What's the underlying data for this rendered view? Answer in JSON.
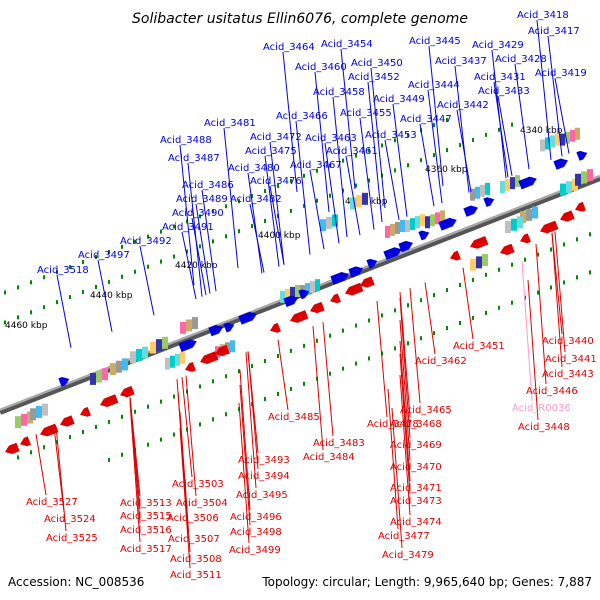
{
  "title": "Solibacter usitatus Ellin6076, complete genome",
  "accession": "Accession: NC_008536",
  "summary": "Topology: circular; Length: 9,965,640 bp; Genes: 7,887",
  "colors": {
    "forward_gene": "#0000dd",
    "reverse_gene": "#dd0000",
    "rna_gene": "#ff99cc",
    "backbone": "#777777",
    "tick": "#008800"
  },
  "kbp_ticks": [
    "4340 kbp",
    "4360 kbp",
    "4380 kbp",
    "4400 kbp",
    "4420 kbp",
    "4440 kbp",
    "4460 kbp"
  ],
  "forward_labels": [
    "Acid_3418",
    "Acid_3417",
    "Acid_3429",
    "Acid_3428",
    "Acid_3419",
    "Acid_3431",
    "Acid_3433",
    "Acid_3445",
    "Acid_3437",
    "Acid_3444",
    "Acid_3442",
    "Acid_3449",
    "Acid_3447",
    "Acid_3464",
    "Acid_3454",
    "Acid_3450",
    "Acid_3460",
    "Acid_3452",
    "Acid_3458",
    "Acid_3455",
    "Acid_3453",
    "Acid_3466",
    "Acid_3463",
    "Acid_3461",
    "Acid_3481",
    "Acid_3472",
    "Acid_3475",
    "Acid_3488",
    "Acid_3487",
    "Acid_3480",
    "Acid_3467",
    "Acid_3476",
    "Acid_3486",
    "Acid_3489",
    "Acid_3482",
    "Acid_3490",
    "Acid_3491",
    "Acid_3492",
    "Acid_3497",
    "Acid_3518"
  ],
  "reverse_labels": [
    "Acid_3451",
    "Acid_3440",
    "Acid_3462",
    "Acid_3441",
    "Acid_3443",
    "Acid_3446",
    "Acid_3448",
    "Acid_3465",
    "Acid_3485",
    "Acid_3478",
    "Acid_3468",
    "Acid_3483",
    "Acid_3469",
    "Acid_3484",
    "Acid_3470",
    "Acid_3493",
    "Acid_3494",
    "Acid_3471",
    "Acid_3473",
    "Acid_3503",
    "Acid_3495",
    "Acid_3504",
    "Acid_3474",
    "Acid_3496",
    "Acid_3506",
    "Acid_3527",
    "Acid_3513",
    "Acid_3477",
    "Acid_3524",
    "Acid_3515",
    "Acid_3498",
    "Acid_3516",
    "Acid_3525",
    "Acid_3507",
    "Acid_3499",
    "Acid_3517",
    "Acid_3479",
    "Acid_3508",
    "Acid_3511"
  ],
  "rna_labels": [
    "Acid_R0036"
  ]
}
